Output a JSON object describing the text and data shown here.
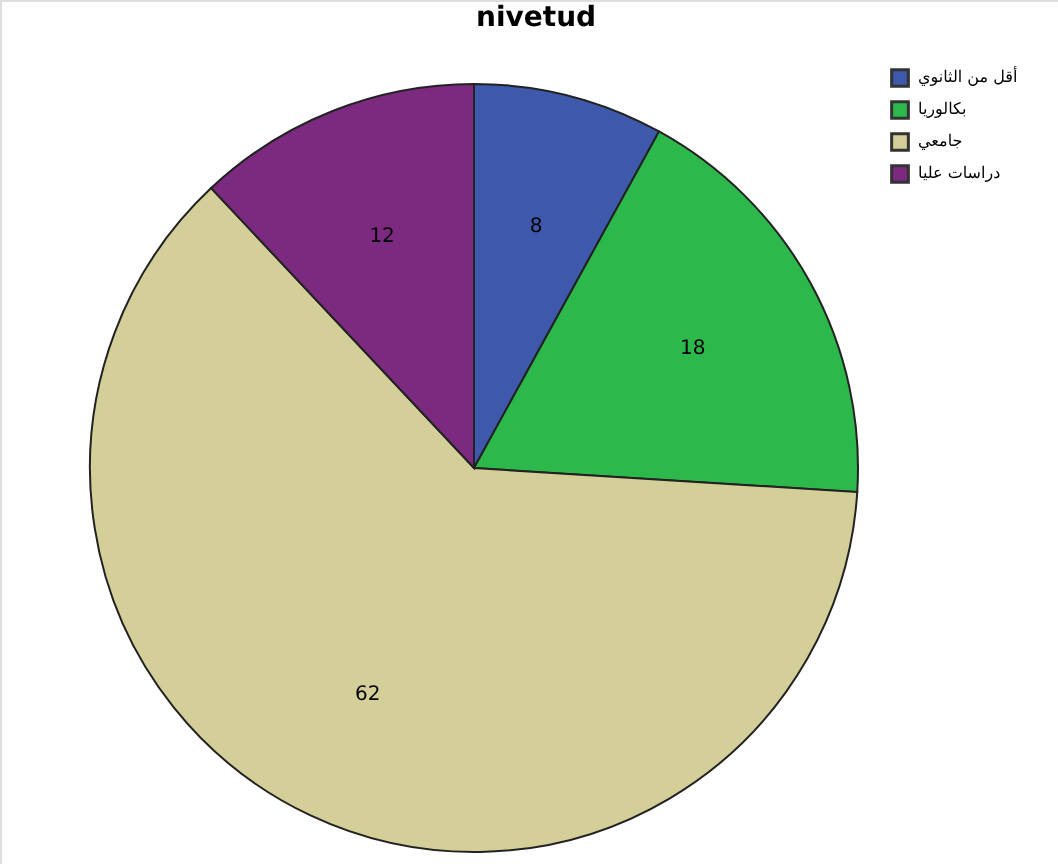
{
  "chart_data": {
    "type": "pie",
    "title": "nivetud",
    "categories": [
      "أقل من الثانوي",
      "بكالوريا",
      "جامعي",
      "دراسات عليا"
    ],
    "values": [
      8,
      18,
      62,
      12
    ],
    "colors": [
      "#3e58ac",
      "#2db84b",
      "#d4cf99",
      "#7b2a80"
    ],
    "data_labels": true,
    "legend": "top right"
  }
}
